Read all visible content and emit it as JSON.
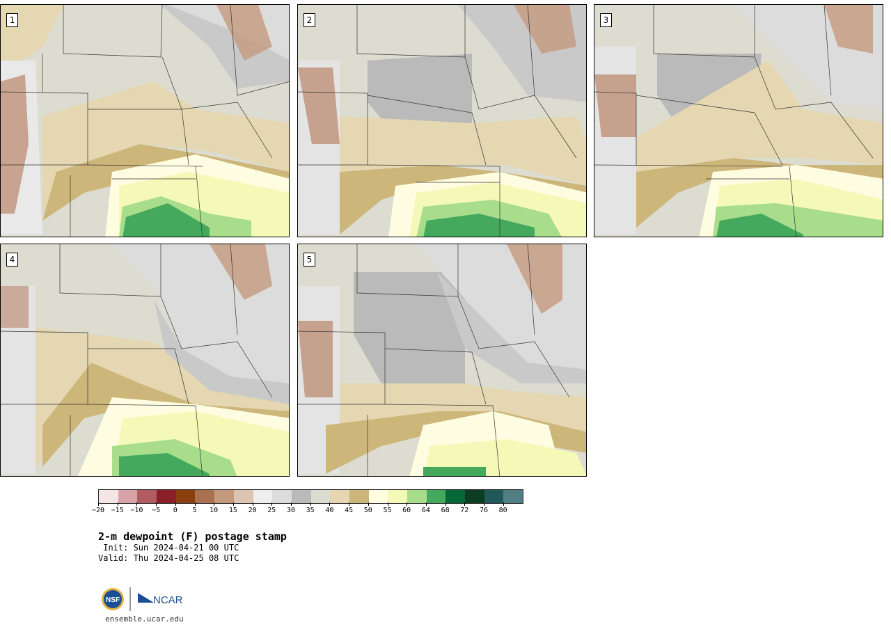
{
  "panels": [
    {
      "number": "1"
    },
    {
      "number": "2"
    },
    {
      "number": "3"
    },
    {
      "number": "4"
    },
    {
      "number": "5"
    }
  ],
  "colorbar": {
    "colors": [
      "#f5e6e6",
      "#d7a3a8",
      "#b05c61",
      "#8a1f27",
      "#8b3e0e",
      "#a9714f",
      "#c49a7e",
      "#dbc4b2",
      "#eeeeee",
      "#dcdcdc",
      "#bababa",
      "#dddcd0",
      "#e4d7b1",
      "#cdb679",
      "#fffde1",
      "#f5f9b7",
      "#a7dd8b",
      "#45a95d",
      "#056836",
      "#0c3d23",
      "#1f5959",
      "#517e82"
    ],
    "tick_labels": [
      "−20",
      "−15",
      "−10",
      "−5",
      "0",
      "5",
      "10",
      "15",
      "20",
      "25",
      "30",
      "35",
      "40",
      "45",
      "50",
      "55",
      "60",
      "64",
      "68",
      "72",
      "76",
      "80"
    ]
  },
  "title": "2-m dewpoint (F) postage stamp",
  "init_text": " Init: Sun 2024-04-21 00 UTC",
  "valid_text": "Valid: Thu 2024-04-25 08 UTC",
  "logos": {
    "nsf": "NSF",
    "ncar": "NCAR"
  },
  "url": "ensemble.ucar.edu"
}
